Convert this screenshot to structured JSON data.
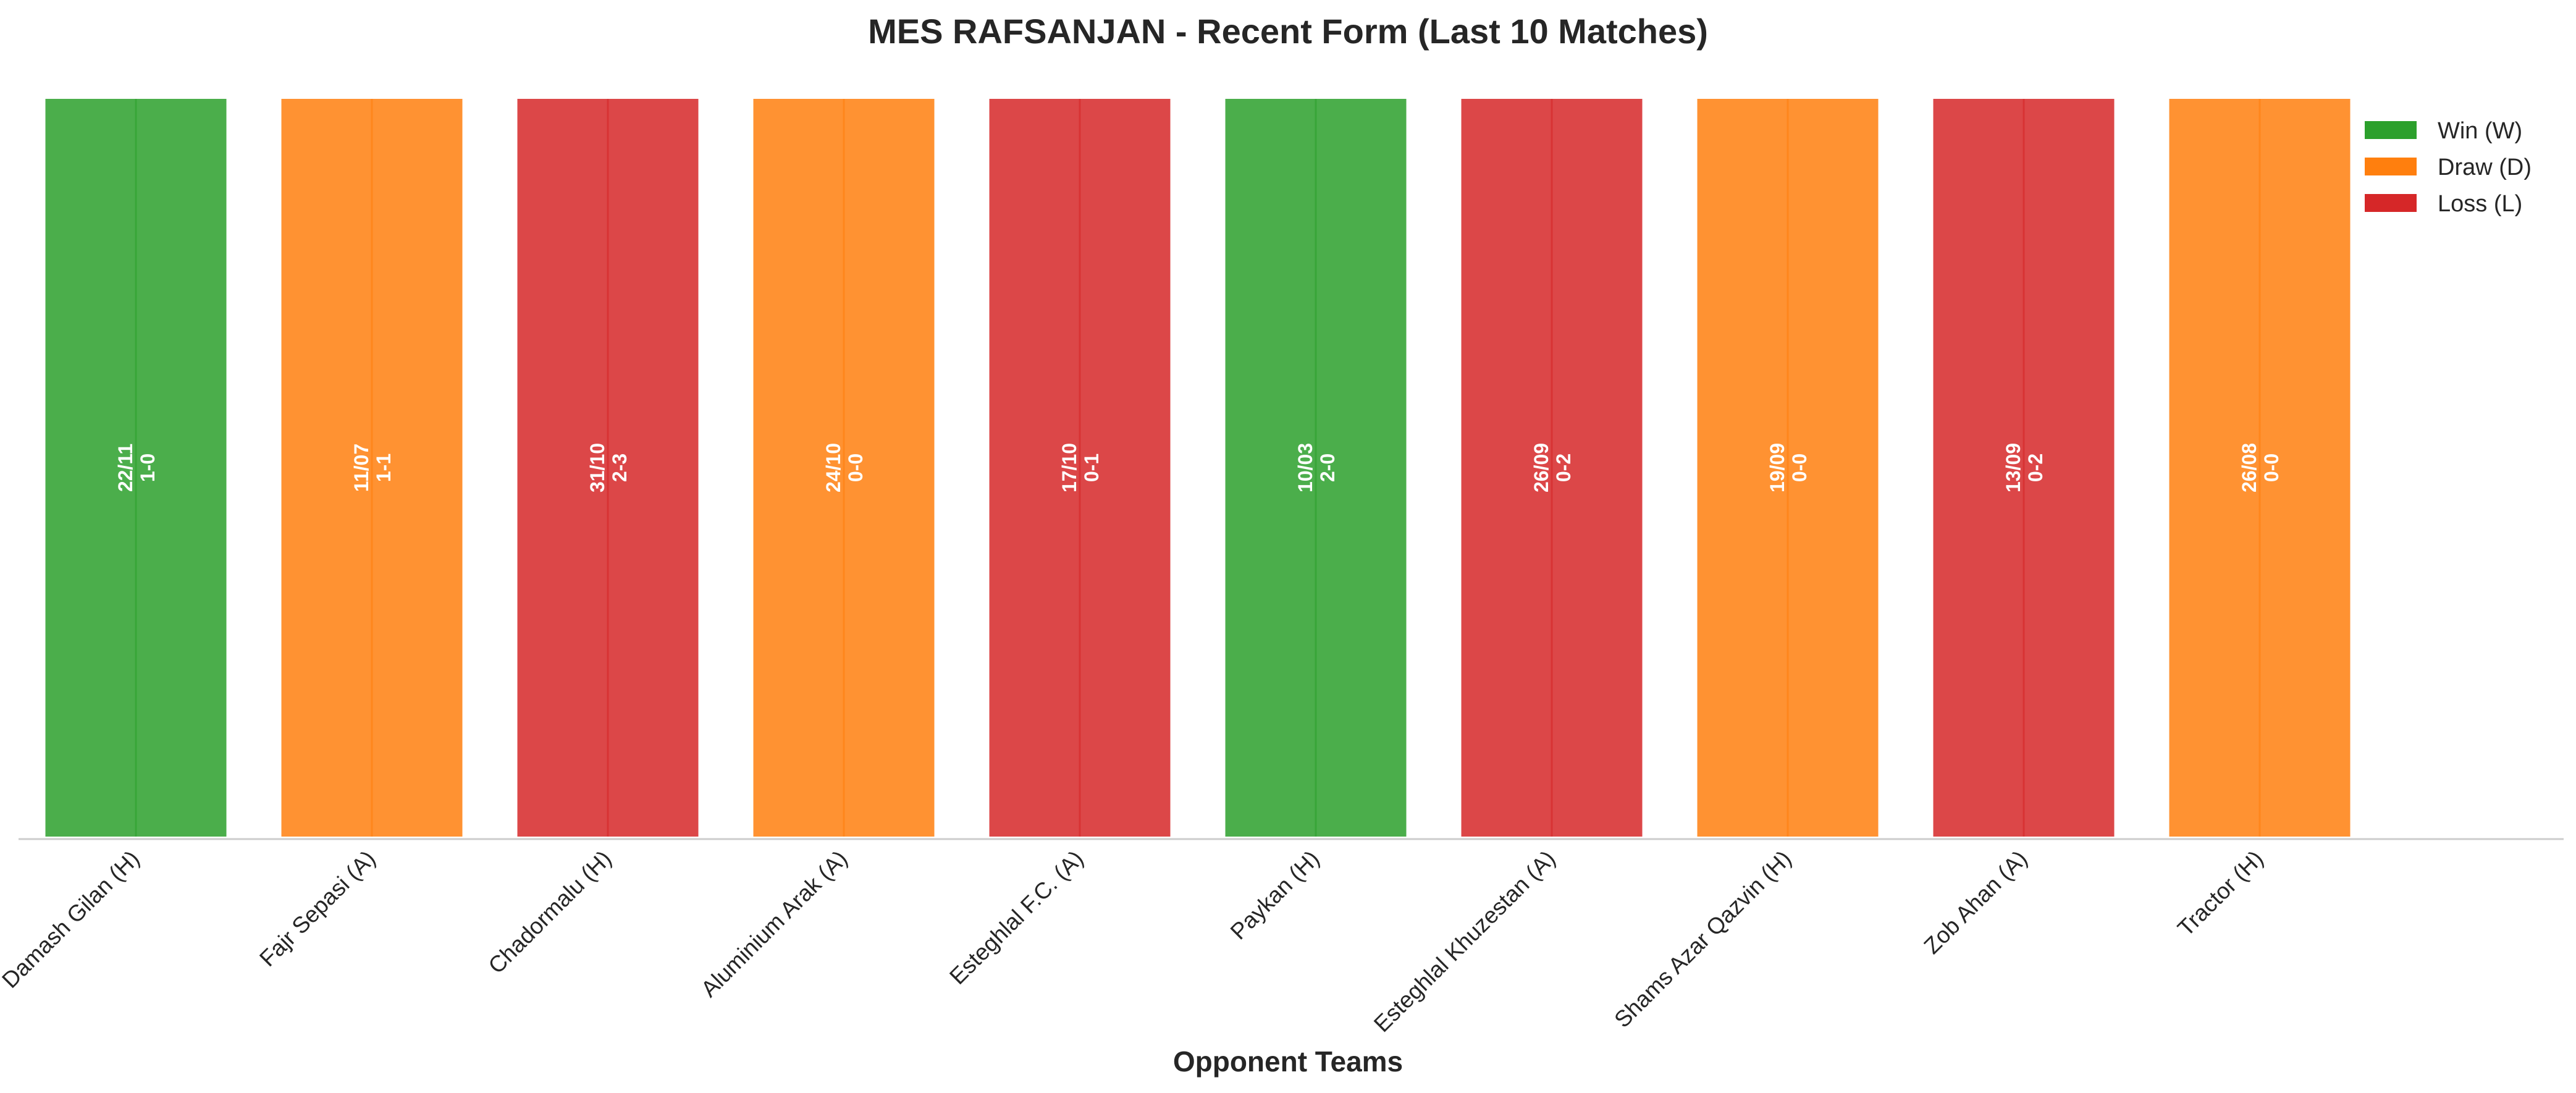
{
  "chart_data": {
    "type": "bar",
    "title": "MES RAFSANJAN - Recent Form (Last 10 Matches)",
    "xlabel": "Opponent Teams",
    "ylabel": "",
    "ylim": [
      0,
      1
    ],
    "grid": false,
    "legend_placement": "top-right",
    "categories": [
      "Damash Gilan (H)",
      "Fajr Sepasi (A)",
      "Chadormalu (H)",
      "Aluminium Arak (A)",
      "Esteghlal F.C. (A)",
      "Paykan (H)",
      "Esteghlal Khuzestan (A)",
      "Shams Azar Qazvin (H)",
      "Zob Ahan (A)",
      "Tractor (H)"
    ],
    "values": [
      1,
      1,
      1,
      1,
      1,
      1,
      1,
      1,
      1,
      1
    ],
    "results": [
      "W",
      "D",
      "L",
      "D",
      "L",
      "W",
      "L",
      "D",
      "L",
      "D"
    ],
    "dates": [
      "22/11",
      "11/07",
      "31/10",
      "24/10",
      "17/10",
      "10/03",
      "26/09",
      "19/09",
      "13/09",
      "26/08"
    ],
    "scores": [
      "1-0",
      "1-1",
      "2-3",
      "0-0",
      "0-1",
      "2-0",
      "0-2",
      "0-0",
      "0-2",
      "0-0"
    ],
    "colors": {
      "W": "#2ca02c",
      "D": "#ff7f0e",
      "L": "#d62728"
    },
    "legend": [
      {
        "key": "W",
        "label": "Win (W)"
      },
      {
        "key": "D",
        "label": "Draw (D)"
      },
      {
        "key": "L",
        "label": "Loss (L)"
      }
    ]
  }
}
